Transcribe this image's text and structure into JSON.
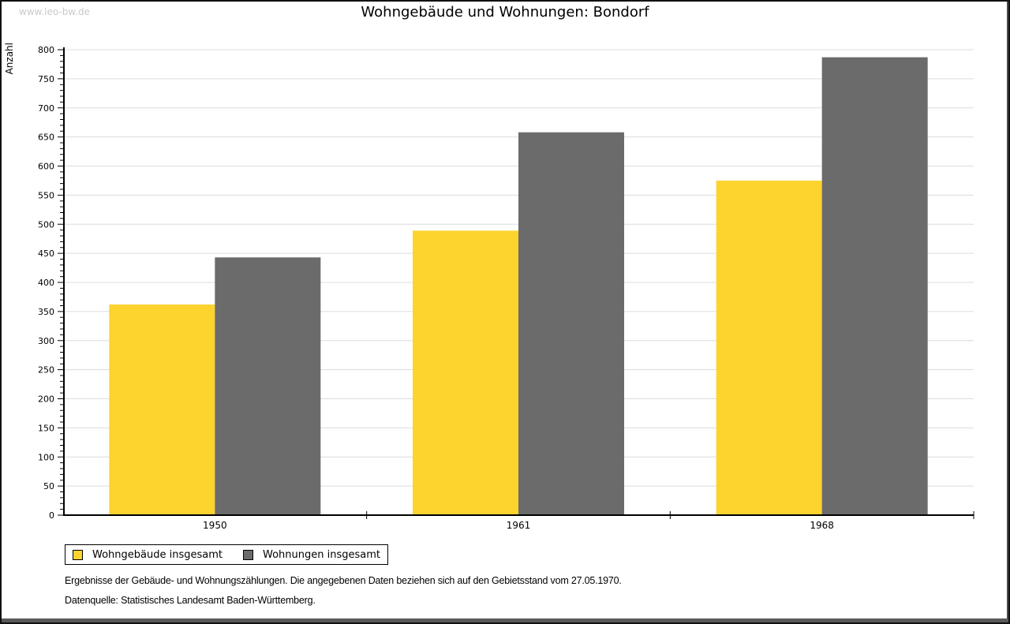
{
  "watermark": "www.leo-bw.de",
  "title": "Wohngebäude und Wohnungen: Bondorf",
  "chart_data": {
    "type": "bar",
    "title": "Wohngebäude und Wohnungen: Bondorf",
    "categories": [
      "1950",
      "1961",
      "1968"
    ],
    "series": [
      {
        "name": "Wohngebäude insgesamt",
        "color": "#FDD32E",
        "values": [
          362,
          489,
          575
        ]
      },
      {
        "name": "Wohnungen insgesamt",
        "color": "#6B6B6B",
        "values": [
          443,
          658,
          787
        ]
      }
    ],
    "xlabel": "",
    "ylabel": "Anzahl",
    "ylim": [
      0,
      800
    ],
    "y_major_step": 50,
    "y_minor_step": 10,
    "y_ticks": [
      0,
      50,
      100,
      150,
      200,
      250,
      300,
      350,
      400,
      450,
      500,
      550,
      600,
      650,
      700,
      750,
      800
    ],
    "grid": true,
    "legend_position": "bottom-left"
  },
  "footnotes": {
    "line1": "Ergebnisse der Gebäude- und Wohnungszählungen. Die angegebenen Daten beziehen sich auf den Gebietsstand vom 27.05.1970.",
    "line2": "Datenquelle: Statistisches Landesamt Baden-Württemberg."
  },
  "colors": {
    "grid": "#dcdcdc",
    "axis": "#000000",
    "watermark": "#c9c9c9",
    "frame": "#111111"
  }
}
